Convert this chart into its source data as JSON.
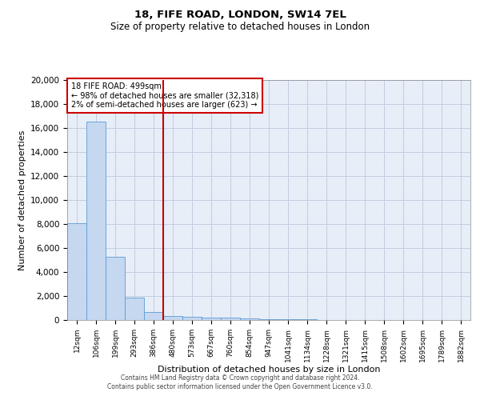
{
  "title1": "18, FIFE ROAD, LONDON, SW14 7EL",
  "title2": "Size of property relative to detached houses in London",
  "xlabel": "Distribution of detached houses by size in London",
  "ylabel": "Number of detached properties",
  "annotation_line1": "18 FIFE ROAD: 499sqm",
  "annotation_line2": "← 98% of detached houses are smaller (32,318)",
  "annotation_line3": "2% of semi-detached houses are larger (623) →",
  "categories": [
    "12sqm",
    "106sqm",
    "199sqm",
    "293sqm",
    "386sqm",
    "480sqm",
    "573sqm",
    "667sqm",
    "760sqm",
    "854sqm",
    "947sqm",
    "1041sqm",
    "1134sqm",
    "1228sqm",
    "1321sqm",
    "1415sqm",
    "1508sqm",
    "1602sqm",
    "1695sqm",
    "1789sqm",
    "1882sqm"
  ],
  "values": [
    8100,
    16500,
    5300,
    1850,
    700,
    350,
    280,
    230,
    200,
    110,
    70,
    50,
    35,
    25,
    15,
    10,
    8,
    5,
    4,
    3,
    2
  ],
  "bar_color": "#c5d8f0",
  "bar_edge_color": "#5b9bd5",
  "vline_x_index": 4.5,
  "vline_color": "#cc0000",
  "box_color": "#cc0000",
  "background_color": "#e8eef8",
  "grid_color": "#c0cce0",
  "ylim": [
    0,
    20000
  ],
  "yticks": [
    0,
    2000,
    4000,
    6000,
    8000,
    10000,
    12000,
    14000,
    16000,
    18000,
    20000
  ],
  "footnote1": "Contains HM Land Registry data © Crown copyright and database right 2024.",
  "footnote2": "Contains public sector information licensed under the Open Government Licence v3.0."
}
